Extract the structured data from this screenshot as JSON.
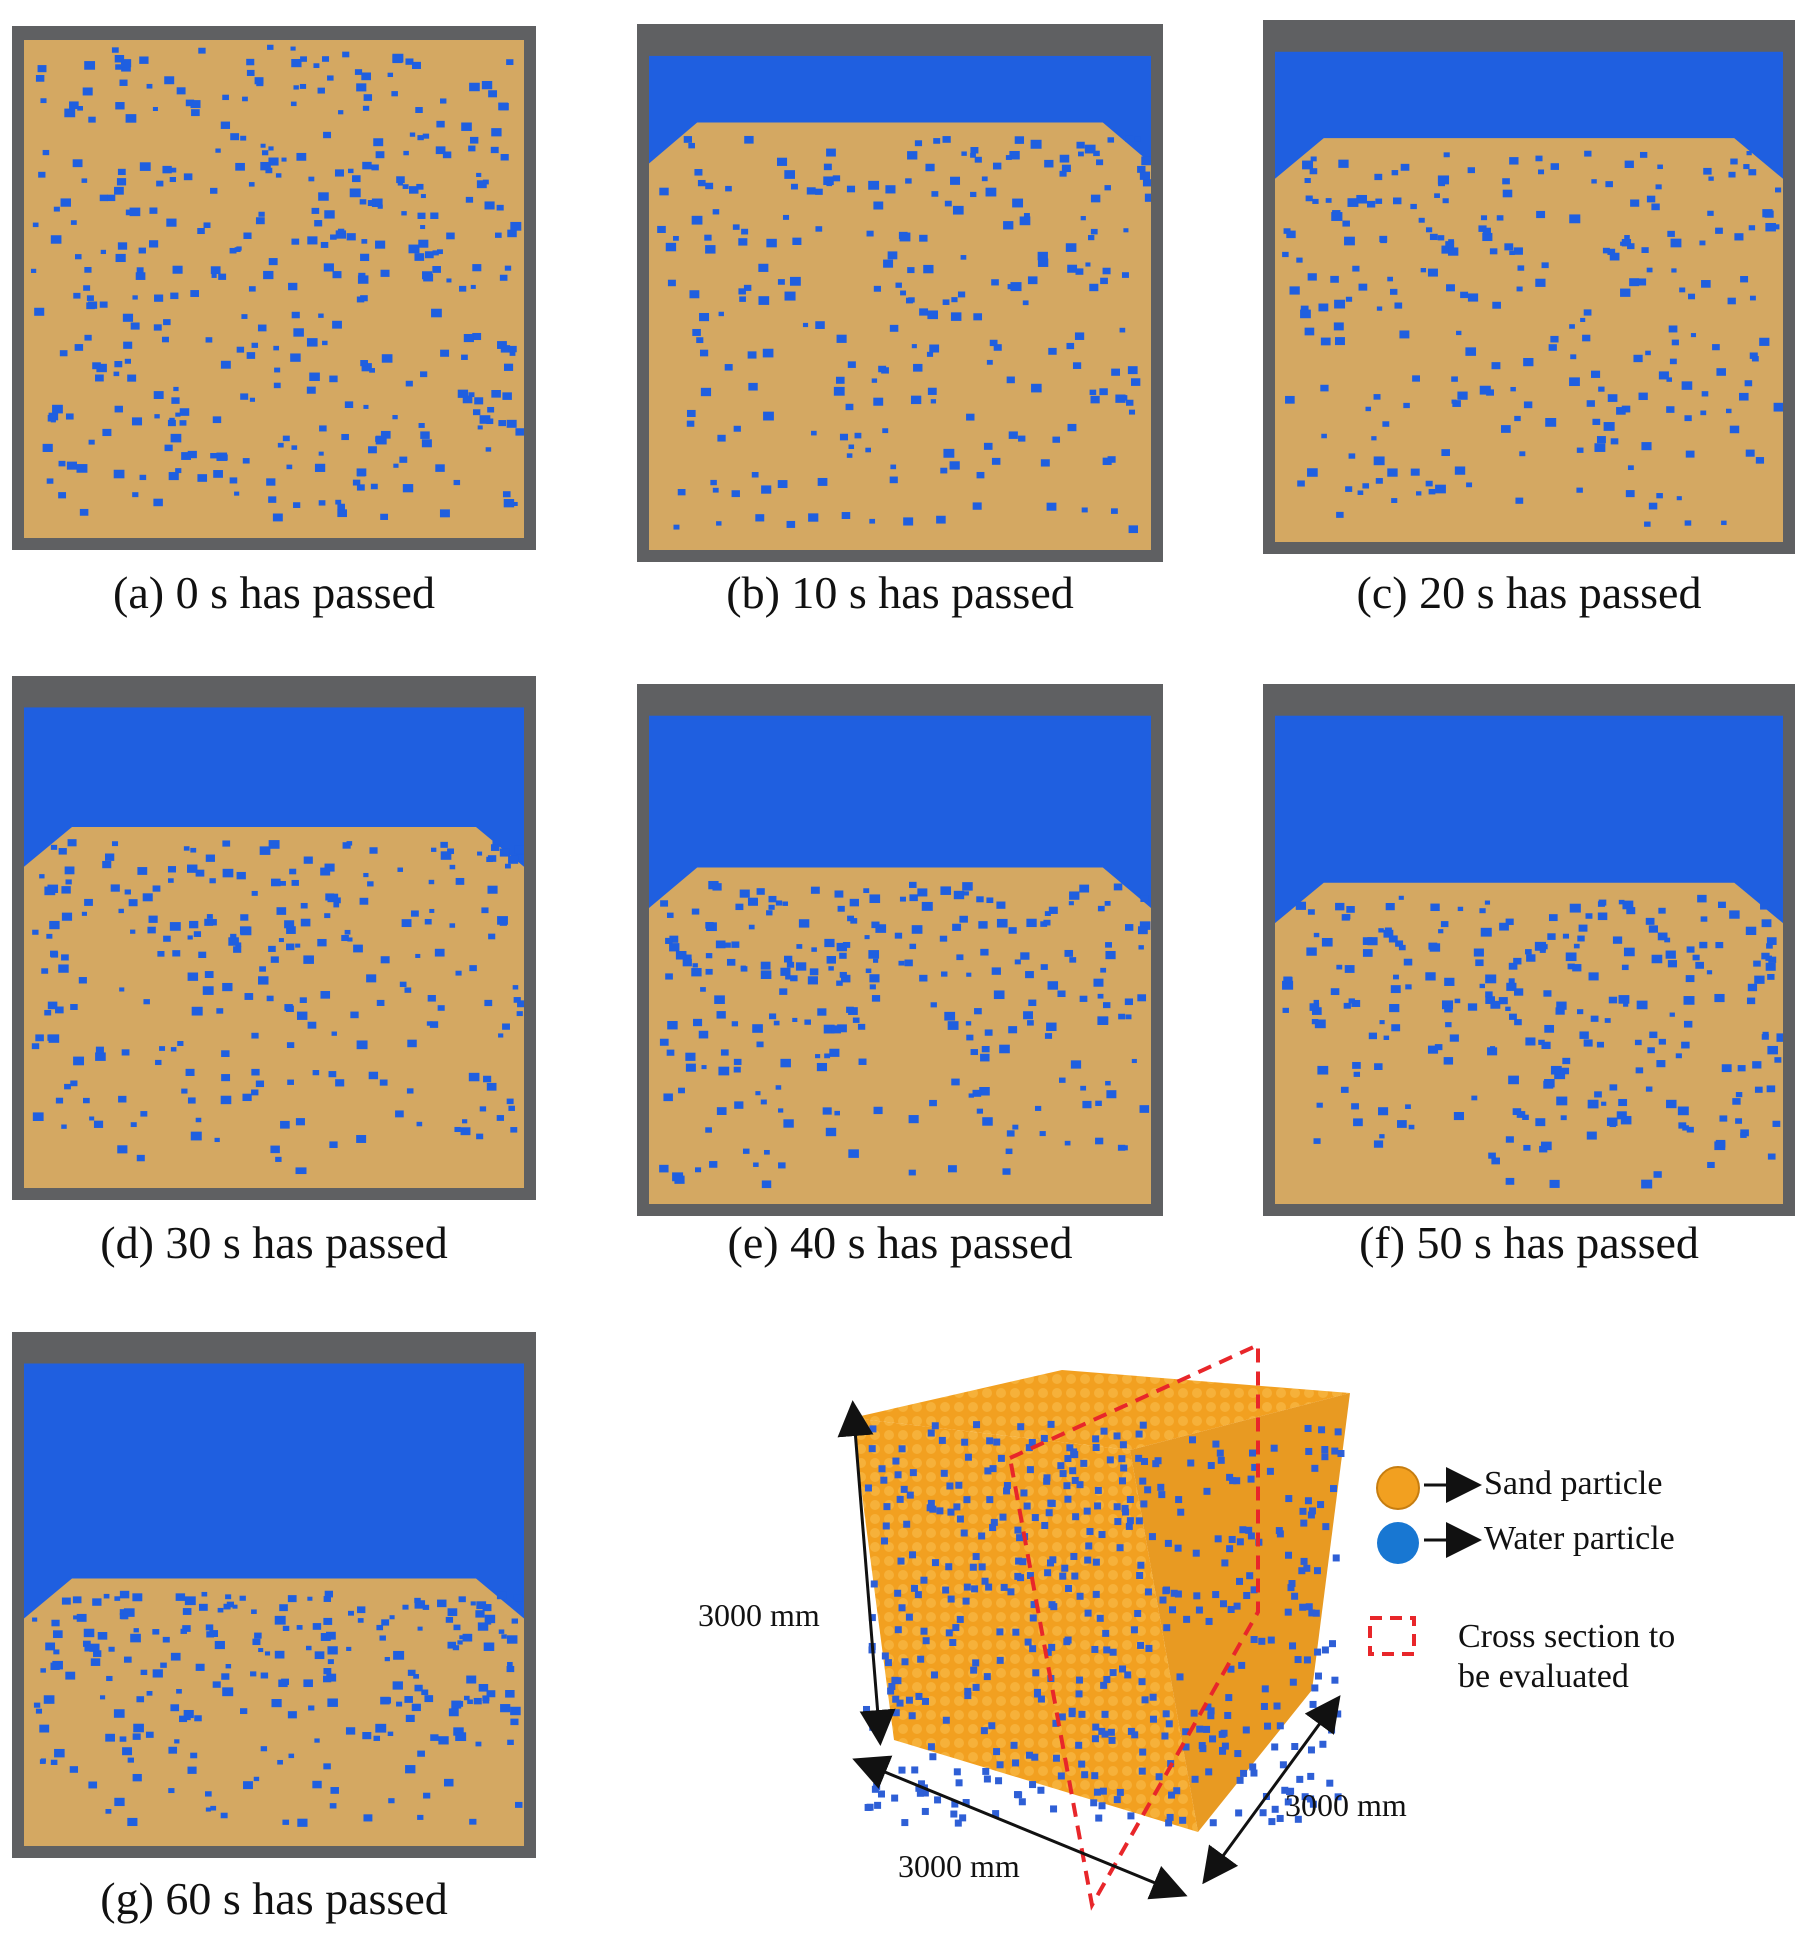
{
  "panels": [
    {
      "id": "a",
      "caption": "(a) 0 s has passed"
    },
    {
      "id": "b",
      "caption": "(b) 10 s has passed"
    },
    {
      "id": "c",
      "caption": "(c) 20 s has passed"
    },
    {
      "id": "d",
      "caption": "(d) 30 s has passed"
    },
    {
      "id": "e",
      "caption": "(e) 40 s has passed"
    },
    {
      "id": "f",
      "caption": "(f) 50 s has passed"
    },
    {
      "id": "g",
      "caption": "(g) 60 s has passed"
    }
  ],
  "model": {
    "dim_height": "3000 mm",
    "dim_width": "3000 mm",
    "dim_depth": "3000 mm"
  },
  "legend": {
    "sand_label": "Sand particle",
    "water_label": "Water particle",
    "section_label_line1": "Cross section to",
    "section_label_line2": "be evaluated"
  },
  "colors": {
    "sand": "#d4a862",
    "water": "#1f5fe0",
    "cube_sand": "#f2a020",
    "container": "#5f6062",
    "section_line": "#e8262a"
  }
}
